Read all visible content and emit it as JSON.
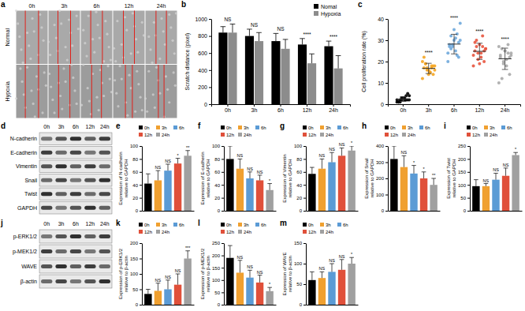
{
  "figure": {
    "a": {
      "title": "a",
      "columns": [
        "0h",
        "3h",
        "6h",
        "12h",
        "24h"
      ],
      "rows": [
        "Normal",
        "Hypoxia"
      ]
    },
    "d": {
      "title": "d",
      "columns": [
        "0h",
        "3h",
        "6h",
        "12h",
        "24h"
      ],
      "rows": [
        "N-cadherin",
        "E-cadherin",
        "Vimentin",
        "Snail",
        "Twist",
        "GAPDH"
      ]
    },
    "j": {
      "title": "j",
      "columns": [
        "0h",
        "3h",
        "6h",
        "12h",
        "24h"
      ],
      "rows": [
        "p-ERK1/2",
        "p-MEK1/2",
        "WAVE",
        "β-actin"
      ]
    }
  },
  "chart_data": [
    {
      "type": "bar",
      "title": "b",
      "categories": [
        "0h",
        "3h",
        "6h",
        "12h",
        "24h"
      ],
      "ylabel": "Scratch distance (pixel)",
      "ylim": [
        0,
        1000
      ],
      "yticks": [
        0,
        200,
        400,
        600,
        800,
        1000
      ],
      "legend": "top-right",
      "series": [
        {
          "name": "Nomal",
          "color": "#000000",
          "values": [
            840,
            800,
            740,
            700,
            680
          ],
          "error": [
            70,
            80,
            90,
            70,
            60
          ]
        },
        {
          "name": "Hypoxia",
          "color": "#8c8c8c",
          "values": [
            840,
            740,
            650,
            480,
            420
          ],
          "error": [
            100,
            100,
            110,
            110,
            150
          ]
        }
      ],
      "annotations": [
        "NS",
        "NS",
        "NS",
        "****",
        "****"
      ]
    },
    {
      "type": "strip",
      "title": "c",
      "categories": [
        "0h",
        "3h",
        "6h",
        "12h",
        "24h"
      ],
      "ylabel": "Cell proliferation rate (%)",
      "ylim": [
        0,
        40
      ],
      "yticks": [
        0,
        10,
        20,
        30,
        40
      ],
      "colors": [
        "#000000",
        "#f5a623",
        "#6fa8dc",
        "#e8553f",
        "#aaaaaa"
      ],
      "values": [
        [
          1,
          2,
          3,
          2,
          1,
          4,
          2,
          3,
          1,
          2,
          5,
          2,
          3,
          1,
          2,
          4,
          3,
          2
        ],
        [
          12,
          14,
          15,
          16,
          17,
          18,
          17,
          16,
          19,
          20,
          18,
          15,
          17,
          22,
          16,
          18,
          14,
          19
        ],
        [
          20,
          22,
          25,
          27,
          28,
          30,
          33,
          35,
          26,
          24,
          29,
          31,
          28,
          27,
          38,
          23,
          30,
          32
        ],
        [
          18,
          20,
          22,
          24,
          25,
          26,
          27,
          28,
          30,
          23,
          25,
          24,
          21,
          29,
          26,
          32,
          19,
          27
        ],
        [
          10,
          14,
          18,
          20,
          22,
          23,
          24,
          25,
          26,
          27,
          22,
          21,
          19,
          23,
          24,
          28,
          25,
          12
        ]
      ],
      "mean": [
        2.4,
        16.8,
        28.2,
        24.8,
        21.3
      ],
      "error": [
        1.1,
        2.4,
        4.6,
        3.8,
        5.0
      ],
      "annotations": [
        null,
        "****",
        "****",
        "****",
        "****"
      ]
    },
    {
      "type": "bar",
      "title": "e",
      "categories": [
        "0h",
        "3h",
        "6h",
        "12h",
        "24h"
      ],
      "colors": [
        "#000000",
        "#f0a030",
        "#5b9bd5",
        "#e0503a",
        "#a0a0a0"
      ],
      "ylabel": [
        "Expression of N-cadherin",
        "relative to GAPDH"
      ],
      "ylim": [
        0,
        100
      ],
      "yticks": [
        0,
        20,
        40,
        60,
        80,
        100
      ],
      "values": [
        42,
        47,
        62,
        73,
        85
      ],
      "error": [
        15,
        15,
        10,
        8,
        8
      ],
      "annotations": [
        null,
        "NS",
        "NS",
        "*",
        "**"
      ],
      "legend": "top",
      "tick_labels": "y"
    },
    {
      "type": "bar",
      "title": "f",
      "categories": [
        "0h",
        "3h",
        "6h",
        "12h",
        "24h"
      ],
      "colors": [
        "#000000",
        "#f0a030",
        "#5b9bd5",
        "#e0503a",
        "#a0a0a0"
      ],
      "ylabel": [
        "Expression of E-cadherin",
        "relative to GAPDH"
      ],
      "ylim": [
        0,
        100
      ],
      "yticks": [
        0,
        20,
        40,
        60,
        80,
        100
      ],
      "values": [
        80,
        65,
        50,
        47,
        32
      ],
      "error": [
        20,
        15,
        10,
        8,
        10
      ],
      "annotations": [
        null,
        "NS",
        "NS",
        "NS",
        "*"
      ],
      "legend": "top",
      "tick_labels": "y"
    },
    {
      "type": "bar",
      "title": "g",
      "categories": [
        "0h",
        "3h",
        "6h",
        "12h",
        "24h"
      ],
      "colors": [
        "#000000",
        "#f0a030",
        "#5b9bd5",
        "#e0503a",
        "#a0a0a0"
      ],
      "ylabel": [
        "Expression of Vimentin",
        "relative to GAPDH"
      ],
      "ylim": [
        0,
        100
      ],
      "yticks": [
        0,
        20,
        40,
        60,
        80,
        100
      ],
      "values": [
        57,
        65,
        75,
        85,
        93
      ],
      "error": [
        10,
        15,
        15,
        12,
        7
      ],
      "annotations": [
        null,
        "NS",
        "NS",
        "NS",
        "*"
      ],
      "legend": "top",
      "tick_labels": "y"
    },
    {
      "type": "bar",
      "title": "h",
      "categories": [
        "0h",
        "3h",
        "6h",
        "12h",
        "24h"
      ],
      "colors": [
        "#000000",
        "#f0a030",
        "#5b9bd5",
        "#e0503a",
        "#a0a0a0"
      ],
      "ylabel": [
        "Expression of Snail",
        "relative to GAPDH"
      ],
      "ylim": [
        0,
        400
      ],
      "yticks": [
        0,
        100,
        200,
        300,
        400
      ],
      "values": [
        320,
        270,
        230,
        200,
        160
      ],
      "error": [
        80,
        70,
        50,
        40,
        40
      ],
      "annotations": [
        null,
        "NS",
        "*",
        "*",
        "**"
      ],
      "legend": "top",
      "tick_labels": "y"
    },
    {
      "type": "bar",
      "title": "i",
      "categories": [
        "0h",
        "3h",
        "6h",
        "12h",
        "24h"
      ],
      "colors": [
        "#000000",
        "#f0a030",
        "#5b9bd5",
        "#e0503a",
        "#a0a0a0"
      ],
      "ylabel": [
        "Expression of Twist",
        "relative to GAPDH"
      ],
      "ylim": [
        0,
        250
      ],
      "yticks": [
        0,
        50,
        100,
        150,
        200,
        250
      ],
      "values": [
        95,
        95,
        120,
        135,
        215
      ],
      "error": [
        25,
        10,
        25,
        30,
        10
      ],
      "annotations": [
        null,
        "NS",
        "NS",
        "NS",
        "*"
      ],
      "legend": "top",
      "tick_labels": "y"
    },
    {
      "type": "bar",
      "title": "k",
      "categories": [
        "0h",
        "3h",
        "6h",
        "12h",
        "24h"
      ],
      "colors": [
        "#000000",
        "#f0a030",
        "#5b9bd5",
        "#e0503a",
        "#a0a0a0"
      ],
      "ylabel": [
        "Expression of p-ERK1/2",
        "relative to β-actin"
      ],
      "ylim": [
        0,
        200
      ],
      "yticks": [
        0,
        50,
        100,
        150,
        200
      ],
      "values": [
        35,
        45,
        50,
        65,
        150
      ],
      "error": [
        15,
        25,
        30,
        35,
        25
      ],
      "annotations": [
        null,
        "NS",
        "NS",
        "NS",
        "***"
      ],
      "legend": "top",
      "tick_labels": "y"
    },
    {
      "type": "bar",
      "title": "l",
      "categories": [
        "0h",
        "3h",
        "6h",
        "12h",
        "24h"
      ],
      "colors": [
        "#000000",
        "#f0a030",
        "#5b9bd5",
        "#e0503a",
        "#a0a0a0"
      ],
      "ylabel": [
        "Expression of p-MEK1/2",
        "relative to β-actin"
      ],
      "ylim": [
        0,
        250
      ],
      "yticks": [
        0,
        50,
        100,
        150,
        200,
        250
      ],
      "values": [
        190,
        130,
        110,
        90,
        55
      ],
      "error": [
        50,
        50,
        30,
        30,
        15
      ],
      "annotations": [
        null,
        "NS",
        "NS",
        "NS",
        "*"
      ],
      "legend": "top",
      "tick_labels": "y"
    },
    {
      "type": "bar",
      "title": "m",
      "categories": [
        "0h",
        "3h",
        "6h",
        "12h",
        "24h"
      ],
      "colors": [
        "#000000",
        "#f0a030",
        "#5b9bd5",
        "#e0503a",
        "#a0a0a0"
      ],
      "ylabel": [
        "Expression of WAVE",
        "relative to β-actin"
      ],
      "ylim": [
        0,
        150
      ],
      "yticks": [
        0,
        50,
        100,
        150
      ],
      "values": [
        60,
        65,
        80,
        85,
        100
      ],
      "error": [
        20,
        15,
        20,
        25,
        15
      ],
      "annotations": [
        null,
        "NS",
        "NS",
        "NS",
        "*"
      ],
      "legend": "top",
      "tick_labels": "y"
    }
  ]
}
